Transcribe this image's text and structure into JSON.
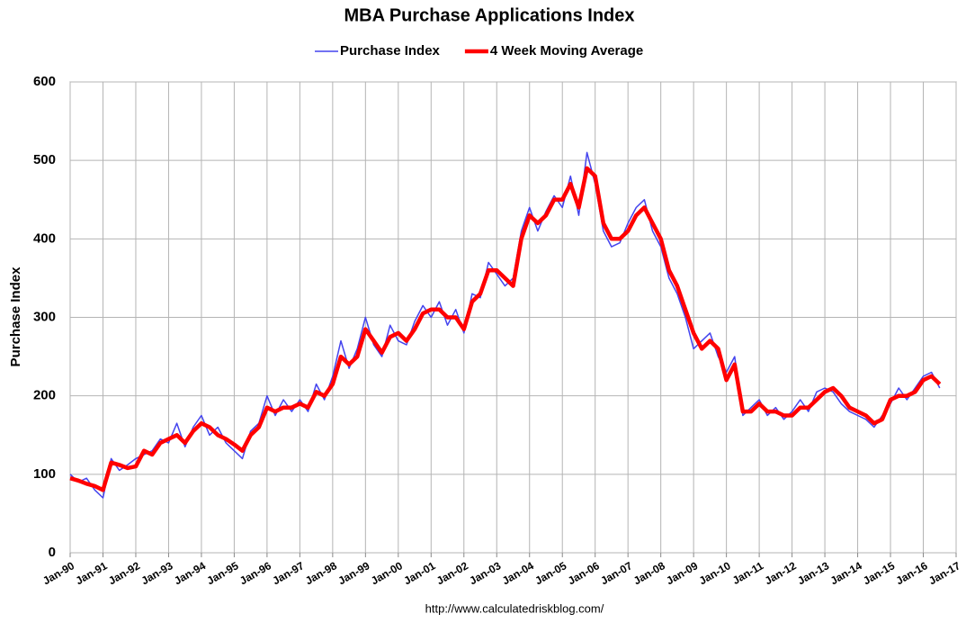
{
  "chart_data": {
    "type": "line",
    "title": "MBA Purchase Applications Index",
    "ylabel": "Purchase Index",
    "source": "http://www.calculatedriskblog.com/",
    "x": [
      "Jan-90",
      "Apr-90",
      "Jul-90",
      "Oct-90",
      "Jan-91",
      "Apr-91",
      "Jul-91",
      "Oct-91",
      "Jan-92",
      "Apr-92",
      "Jul-92",
      "Oct-92",
      "Jan-93",
      "Apr-93",
      "Jul-93",
      "Oct-93",
      "Jan-94",
      "Apr-94",
      "Jul-94",
      "Oct-94",
      "Jan-95",
      "Apr-95",
      "Jul-95",
      "Oct-95",
      "Jan-96",
      "Apr-96",
      "Jul-96",
      "Oct-96",
      "Jan-97",
      "Apr-97",
      "Jul-97",
      "Oct-97",
      "Jan-98",
      "Apr-98",
      "Jul-98",
      "Oct-98",
      "Jan-99",
      "Apr-99",
      "Jul-99",
      "Oct-99",
      "Jan-00",
      "Apr-00",
      "Jul-00",
      "Oct-00",
      "Jan-01",
      "Apr-01",
      "Jul-01",
      "Oct-01",
      "Jan-02",
      "Apr-02",
      "Jul-02",
      "Oct-02",
      "Jan-03",
      "Apr-03",
      "Jul-03",
      "Oct-03",
      "Jan-04",
      "Apr-04",
      "Jul-04",
      "Oct-04",
      "Jan-05",
      "Apr-05",
      "Jul-05",
      "Oct-05",
      "Jan-06",
      "Apr-06",
      "Jul-06",
      "Oct-06",
      "Jan-07",
      "Apr-07",
      "Jul-07",
      "Oct-07",
      "Jan-08",
      "Apr-08",
      "Jul-08",
      "Oct-08",
      "Jan-09",
      "Apr-09",
      "Jul-09",
      "Oct-09",
      "Jan-10",
      "Apr-10",
      "Jul-10",
      "Oct-10",
      "Jan-11",
      "Apr-11",
      "Jul-11",
      "Oct-11",
      "Jan-12",
      "Apr-12",
      "Jul-12",
      "Oct-12",
      "Jan-13",
      "Apr-13",
      "Jul-13",
      "Oct-13",
      "Jan-14",
      "Apr-14",
      "Jul-14",
      "Oct-14",
      "Jan-15",
      "Apr-15",
      "Jul-15",
      "Oct-15",
      "Jan-16",
      "Apr-16",
      "Jul-16"
    ],
    "series": [
      {
        "name": "Purchase Index",
        "color": "#4444ee",
        "width": 1.5,
        "values": [
          100,
          90,
          95,
          80,
          70,
          120,
          105,
          112,
          120,
          125,
          130,
          145,
          140,
          165,
          135,
          160,
          175,
          150,
          160,
          140,
          130,
          120,
          155,
          165,
          200,
          175,
          195,
          180,
          195,
          180,
          215,
          195,
          225,
          270,
          235,
          260,
          300,
          265,
          250,
          290,
          270,
          265,
          295,
          315,
          300,
          320,
          290,
          310,
          280,
          330,
          325,
          370,
          355,
          340,
          350,
          410,
          440,
          410,
          435,
          455,
          440,
          480,
          430,
          510,
          470,
          410,
          390,
          395,
          420,
          440,
          450,
          410,
          390,
          350,
          330,
          300,
          260,
          270,
          280,
          250,
          230,
          250,
          175,
          185,
          195,
          175,
          185,
          170,
          180,
          195,
          180,
          205,
          210,
          205,
          190,
          180,
          175,
          170,
          160,
          175,
          190,
          210,
          195,
          210,
          225,
          230,
          210
        ]
      },
      {
        "name": "4 Week Moving Average",
        "color": "#ff0000",
        "width": 4.5,
        "values": [
          95,
          92,
          88,
          85,
          80,
          115,
          112,
          108,
          110,
          130,
          125,
          140,
          145,
          150,
          140,
          155,
          165,
          160,
          150,
          145,
          138,
          130,
          150,
          160,
          185,
          180,
          185,
          185,
          190,
          185,
          205,
          200,
          215,
          250,
          240,
          250,
          285,
          270,
          255,
          275,
          280,
          270,
          285,
          305,
          310,
          310,
          300,
          300,
          285,
          320,
          330,
          360,
          360,
          350,
          340,
          400,
          430,
          420,
          430,
          450,
          450,
          470,
          440,
          490,
          480,
          420,
          400,
          400,
          410,
          430,
          440,
          420,
          400,
          360,
          340,
          310,
          280,
          260,
          270,
          260,
          220,
          240,
          180,
          180,
          190,
          180,
          180,
          175,
          175,
          185,
          185,
          195,
          205,
          210,
          200,
          185,
          180,
          175,
          165,
          170,
          195,
          200,
          200,
          205,
          220,
          225,
          215
        ]
      }
    ],
    "xlim": [
      "Jan-90",
      "Jan-17"
    ],
    "xticks": [
      "Jan-90",
      "Jan-91",
      "Jan-92",
      "Jan-93",
      "Jan-94",
      "Jan-95",
      "Jan-96",
      "Jan-97",
      "Jan-98",
      "Jan-99",
      "Jan-00",
      "Jan-01",
      "Jan-02",
      "Jan-03",
      "Jan-04",
      "Jan-05",
      "Jan-06",
      "Jan-07",
      "Jan-08",
      "Jan-09",
      "Jan-10",
      "Jan-11",
      "Jan-12",
      "Jan-13",
      "Jan-14",
      "Jan-15",
      "Jan-16",
      "Jan-17"
    ],
    "ylim": [
      0,
      600
    ],
    "yticks": [
      0,
      100,
      200,
      300,
      400,
      500,
      600
    ],
    "grid": true,
    "legend": "top"
  }
}
